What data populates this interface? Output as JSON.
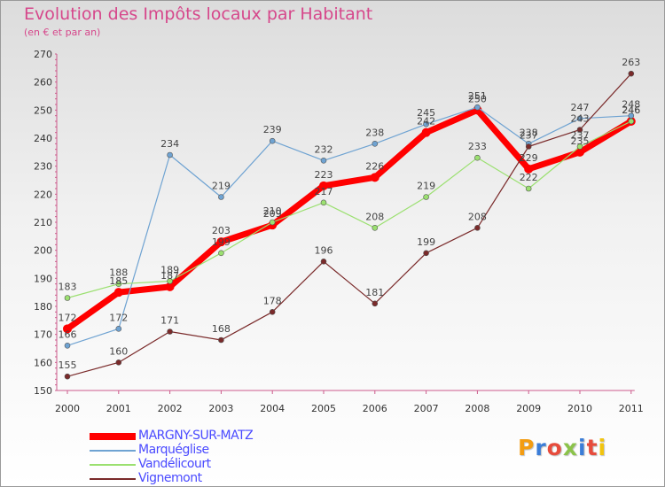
{
  "title": "Evolution des Impôts locaux par Habitant",
  "subtitle": "(en € et par an)",
  "logo_text": "Proxiti",
  "logo_colors": [
    "#f39c12",
    "#3b7dd8",
    "#e74c3c",
    "#8bc34a",
    "#3b7dd8",
    "#e74c3c",
    "#f1c40f"
  ],
  "chart_data": {
    "type": "line",
    "x": [
      "2000",
      "2001",
      "2002",
      "2003",
      "2004",
      "2005",
      "2006",
      "2007",
      "2008",
      "2009",
      "2010",
      "2011"
    ],
    "ylim": [
      150,
      270
    ],
    "yticks": [
      150,
      160,
      170,
      180,
      190,
      200,
      210,
      220,
      230,
      240,
      250,
      260,
      270
    ],
    "grid": false,
    "legend_position": "bottom-left",
    "series": [
      {
        "name": "MARGNY-SUR-MATZ",
        "color": "#ff0000",
        "values": [
          172,
          185,
          187,
          203,
          209,
          223,
          226,
          242,
          250,
          229,
          235,
          246
        ]
      },
      {
        "name": "Marquéglise",
        "color": "#6fa3d2",
        "values": [
          166,
          172,
          234,
          219,
          239,
          232,
          238,
          245,
          251,
          238,
          247,
          248
        ]
      },
      {
        "name": "Vandélicourt",
        "color": "#9be070",
        "values": [
          183,
          188,
          189,
          199,
          210,
          217,
          208,
          219,
          233,
          222,
          237,
          246
        ]
      },
      {
        "name": "Vignemont",
        "color": "#7a2a2a",
        "values": [
          155,
          160,
          171,
          168,
          178,
          196,
          181,
          199,
          208,
          237,
          243,
          263
        ]
      }
    ]
  }
}
